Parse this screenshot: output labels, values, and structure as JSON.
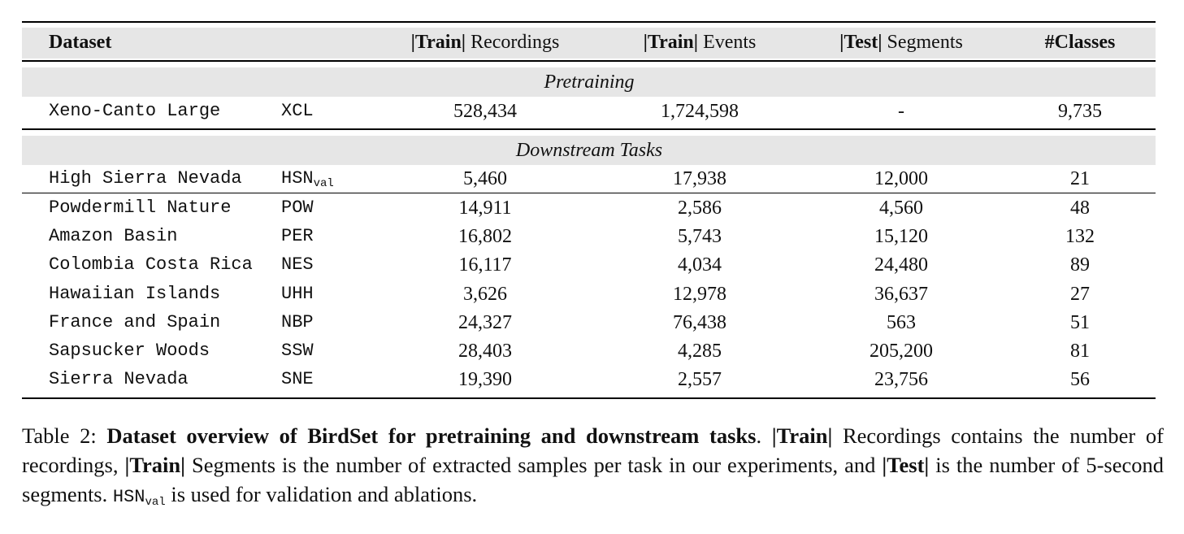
{
  "table": {
    "headers": {
      "dataset": "Dataset",
      "train_rec_bold": "|Train|",
      "train_rec_rest": " Recordings",
      "train_ev_bold": "|Train|",
      "train_ev_rest": " Events",
      "test_seg_bold": "|Test|",
      "test_seg_rest": " Segments",
      "classes": "#Classes"
    },
    "sections": {
      "pretraining": "Pretraining",
      "downstream": "Downstream Tasks"
    },
    "pretrain_row": {
      "name": "Xeno-Canto Large",
      "code": "XCL",
      "train_recordings": "528,434",
      "train_events": "1,724,598",
      "test_segments": "-",
      "classes": "9,735"
    },
    "validation_row": {
      "name": "High Sierra Nevada",
      "code": "HSN",
      "code_sub": "val",
      "train_recordings": "5,460",
      "train_events": "17,938",
      "test_segments": "12,000",
      "classes": "21"
    },
    "downstream_rows": [
      {
        "name": "Powdermill Nature",
        "code": "POW",
        "train_recordings": "14,911",
        "train_events": "2,586",
        "test_segments": "4,560",
        "classes": "48"
      },
      {
        "name": "Amazon Basin",
        "code": "PER",
        "train_recordings": "16,802",
        "train_events": "5,743",
        "test_segments": "15,120",
        "classes": "132"
      },
      {
        "name": "Colombia Costa Rica",
        "code": "NES",
        "train_recordings": "16,117",
        "train_events": "4,034",
        "test_segments": "24,480",
        "classes": "89"
      },
      {
        "name": "Hawaiian Islands",
        "code": "UHH",
        "train_recordings": "3,626",
        "train_events": "12,978",
        "test_segments": "36,637",
        "classes": "27"
      },
      {
        "name": "France and Spain",
        "code": "NBP",
        "train_recordings": "24,327",
        "train_events": "76,438",
        "test_segments": "563",
        "classes": "51"
      },
      {
        "name": "Sapsucker Woods",
        "code": "SSW",
        "train_recordings": "28,403",
        "train_events": "4,285",
        "test_segments": "205,200",
        "classes": "81"
      },
      {
        "name": "Sierra Nevada",
        "code": "SNE",
        "train_recordings": "19,390",
        "train_events": "2,557",
        "test_segments": "23,756",
        "classes": "56"
      }
    ]
  },
  "caption": {
    "label": "Table 2: ",
    "bold_title": "Dataset overview of BirdSet for pretraining and downstream tasks",
    "t1": ". ",
    "b1": "|Train|",
    "t2": " Recordings contains the number of recordings, ",
    "b2": "|Train|",
    "t3": " Segments is the number of extracted samples per task in our experiments, and ",
    "b3": "|Test|",
    "t4": " is the number of 5-second segments. ",
    "code": "HSN",
    "code_sub": "val",
    "t5": " is used for validation and ablations."
  }
}
